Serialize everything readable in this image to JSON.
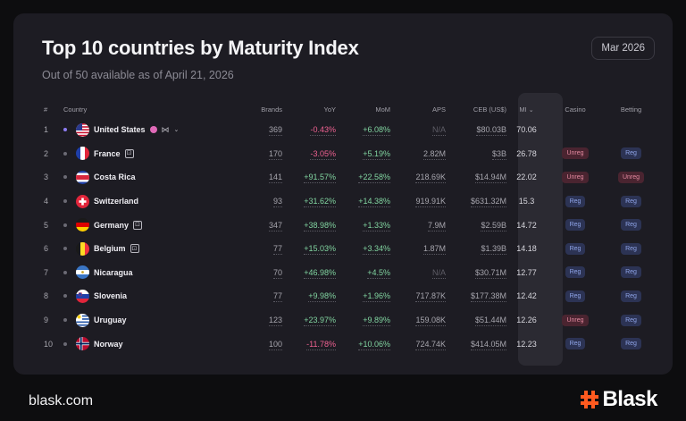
{
  "header": {
    "title": "Top 10 countries by Maturity Index",
    "subtitle": "Out of 50 available as of April 21, 2026",
    "period": "Mar 2026"
  },
  "columns": {
    "rank": "#",
    "country": "Country",
    "brands": "Brands",
    "yoy": "YoY",
    "mom": "MoM",
    "aps": "APS",
    "ceb": "CEB (US$)",
    "mi": "MI",
    "mi_sort_icon": "sort-desc-icon",
    "casino": "Casino",
    "betting": "Betting"
  },
  "rows": [
    {
      "rank": "1",
      "country": "United States",
      "flag": "us",
      "brands": "369",
      "yoy": "-0.43%",
      "mom": "+6.08%",
      "aps": "N/A",
      "ceb": "$80.03B",
      "mi": "70.06",
      "casino": "",
      "betting": "",
      "yoy_sign": "neg",
      "mom_sign": "pos",
      "active": true,
      "icon": "multi-state-dot"
    },
    {
      "rank": "2",
      "country": "France",
      "flag": "fr",
      "brands": "170",
      "yoy": "-3.05%",
      "mom": "+5.19%",
      "aps": "2.82M",
      "ceb": "$3B",
      "mi": "26.78",
      "casino": "Unreg",
      "betting": "Reg",
      "yoy_sign": "neg",
      "mom_sign": "pos",
      "icon": "box"
    },
    {
      "rank": "3",
      "country": "Costa Rica",
      "flag": "cr",
      "brands": "141",
      "yoy": "+91.57%",
      "mom": "+22.58%",
      "aps": "218.69K",
      "ceb": "$14.94M",
      "mi": "22.02",
      "casino": "Unreg",
      "betting": "Unreg",
      "yoy_sign": "pos",
      "mom_sign": "pos"
    },
    {
      "rank": "4",
      "country": "Switzerland",
      "flag": "ch",
      "brands": "93",
      "yoy": "+31.62%",
      "mom": "+14.38%",
      "aps": "919.91K",
      "ceb": "$631.32M",
      "mi": "15.3",
      "casino": "Reg",
      "betting": "Reg",
      "yoy_sign": "pos",
      "mom_sign": "pos"
    },
    {
      "rank": "5",
      "country": "Germany",
      "flag": "de",
      "brands": "347",
      "yoy": "+38.98%",
      "mom": "+1.33%",
      "aps": "7.9M",
      "ceb": "$2.59B",
      "mi": "14.72",
      "casino": "Reg",
      "betting": "Reg",
      "yoy_sign": "pos",
      "mom_sign": "pos",
      "icon": "box"
    },
    {
      "rank": "6",
      "country": "Belgium",
      "flag": "be",
      "brands": "77",
      "yoy": "+15.03%",
      "mom": "+3.34%",
      "aps": "1.87M",
      "ceb": "$1.39B",
      "mi": "14.18",
      "casino": "Reg",
      "betting": "Reg",
      "yoy_sign": "pos",
      "mom_sign": "pos",
      "icon": "box"
    },
    {
      "rank": "7",
      "country": "Nicaragua",
      "flag": "ni",
      "brands": "70",
      "yoy": "+46.98%",
      "mom": "+4.5%",
      "aps": "N/A",
      "ceb": "$30.71M",
      "mi": "12.77",
      "casino": "Reg",
      "betting": "Reg",
      "yoy_sign": "pos",
      "mom_sign": "pos"
    },
    {
      "rank": "8",
      "country": "Slovenia",
      "flag": "si",
      "brands": "77",
      "yoy": "+9.98%",
      "mom": "+1.96%",
      "aps": "717.87K",
      "ceb": "$177.38M",
      "mi": "12.42",
      "casino": "Reg",
      "betting": "Reg",
      "yoy_sign": "pos",
      "mom_sign": "pos"
    },
    {
      "rank": "9",
      "country": "Uruguay",
      "flag": "uy",
      "brands": "123",
      "yoy": "+23.97%",
      "mom": "+9.89%",
      "aps": "159.08K",
      "ceb": "$51.44M",
      "mi": "12.26",
      "casino": "Unreg",
      "betting": "Reg",
      "yoy_sign": "pos",
      "mom_sign": "pos"
    },
    {
      "rank": "10",
      "country": "Norway",
      "flag": "no",
      "brands": "100",
      "yoy": "-11.78%",
      "mom": "+10.06%",
      "aps": "724.74K",
      "ceb": "$414.05M",
      "mi": "12.23",
      "casino": "Reg",
      "betting": "Reg",
      "yoy_sign": "neg",
      "mom_sign": "pos"
    }
  ],
  "footer": {
    "domain": "blask.com",
    "brand": "Blask"
  },
  "colors": {
    "card": "#1d1c23",
    "negative": "#f06292",
    "positive": "#81d4a0",
    "reg_badge": "#2c3354",
    "unreg_badge": "#4a2430",
    "logo_accent": "#ff5a1f"
  }
}
